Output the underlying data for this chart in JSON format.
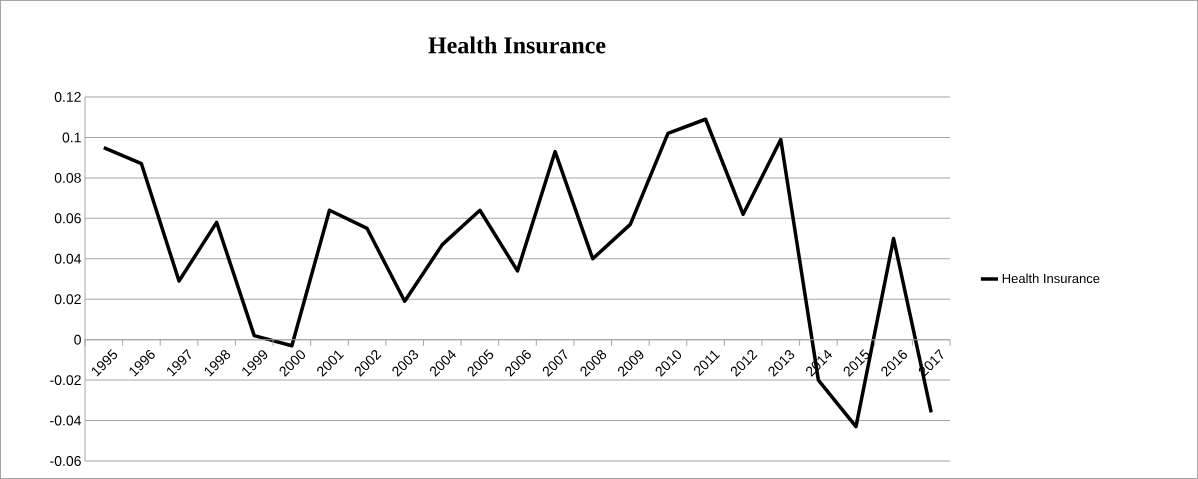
{
  "chart_data": {
    "type": "line",
    "title": "Health Insurance",
    "categories": [
      "1995",
      "1996",
      "1997",
      "1998",
      "1999",
      "2000",
      "2001",
      "2002",
      "2003",
      "2004",
      "2005",
      "2006",
      "2007",
      "2008",
      "2009",
      "2010",
      "2011",
      "2012",
      "2013",
      "2014",
      "2015",
      "2016",
      "2017"
    ],
    "series": [
      {
        "name": "Health Insurance",
        "color": "#000000",
        "values": [
          0.095,
          0.087,
          0.029,
          0.058,
          0.002,
          -0.003,
          0.064,
          0.055,
          0.019,
          0.047,
          0.064,
          0.034,
          0.093,
          0.04,
          0.057,
          0.102,
          0.109,
          0.062,
          0.099,
          -0.02,
          -0.043,
          0.05,
          -0.036
        ]
      }
    ],
    "ylim": [
      -0.06,
      0.12
    ],
    "yticks": [
      -0.06,
      -0.04,
      -0.02,
      0,
      0.02,
      0.04,
      0.06,
      0.08,
      0.1,
      0.12
    ],
    "grid": "y",
    "legend": "right",
    "marker": "none",
    "line_style": "solid"
  }
}
